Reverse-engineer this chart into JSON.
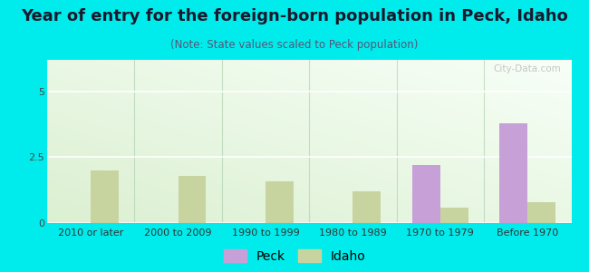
{
  "categories": [
    "2010 or later",
    "2000 to 2009",
    "1990 to 1999",
    "1980 to 1989",
    "1970 to 1979",
    "Before 1970"
  ],
  "peck_values": [
    0,
    0,
    0,
    0,
    2.2,
    3.8
  ],
  "idaho_values": [
    2.0,
    1.8,
    1.6,
    1.2,
    0.6,
    0.8
  ],
  "peck_color": "#c8a0d8",
  "idaho_color": "#c8d4a0",
  "title": "Year of entry for the foreign-born population in Peck, Idaho",
  "subtitle": "(Note: State values scaled to Peck population)",
  "ylim": [
    0,
    6.2
  ],
  "yticks": [
    0,
    2.5,
    5
  ],
  "ytick_labels": [
    "0",
    "2.5",
    "5"
  ],
  "background_color": "#00ecec",
  "plot_bg_topleft": "#d8f0d0",
  "plot_bg_bottomright": "#f8fff8",
  "bar_width": 0.32,
  "title_fontsize": 13,
  "subtitle_fontsize": 8.5,
  "tick_fontsize": 8,
  "legend_fontsize": 10,
  "watermark_text": "City-Data.com",
  "watermark_color": "#b8b8b8"
}
